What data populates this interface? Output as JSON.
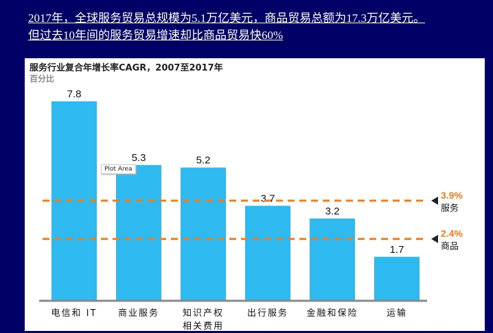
{
  "headline": {
    "line1": "2017年，全球服务贸易总规模为5.1万亿美元，商品贸易总额为17.3万亿美元。",
    "line2": "但过去10年间的服务贸易增速却比商品贸易快60%"
  },
  "tooltip": "Plot Area",
  "chart_data": {
    "type": "bar",
    "title": "服务行业复合年增长率CAGR，2007至2017年",
    "ylabel": "百分比",
    "categories": [
      [
        "电信和 IT"
      ],
      [
        "商业服务"
      ],
      [
        "知识产权",
        "相关费用"
      ],
      [
        "出行服务"
      ],
      [
        "金融和保险"
      ],
      [
        "运输"
      ]
    ],
    "values": [
      7.8,
      5.3,
      5.2,
      3.7,
      3.2,
      1.7
    ],
    "value_labels": [
      "7.8",
      "5.3",
      "5.2",
      "3.7",
      "3.2",
      "1.7"
    ],
    "ylim": [
      0,
      8
    ],
    "reference_lines": [
      {
        "value": 3.9,
        "label": "3.9%",
        "name": "服务"
      },
      {
        "value": 2.4,
        "label": "2.4%",
        "name": "商品"
      }
    ],
    "colors": {
      "bar": "#2EBAF0",
      "reference": "#F07D1A",
      "axis": "#888888"
    }
  }
}
